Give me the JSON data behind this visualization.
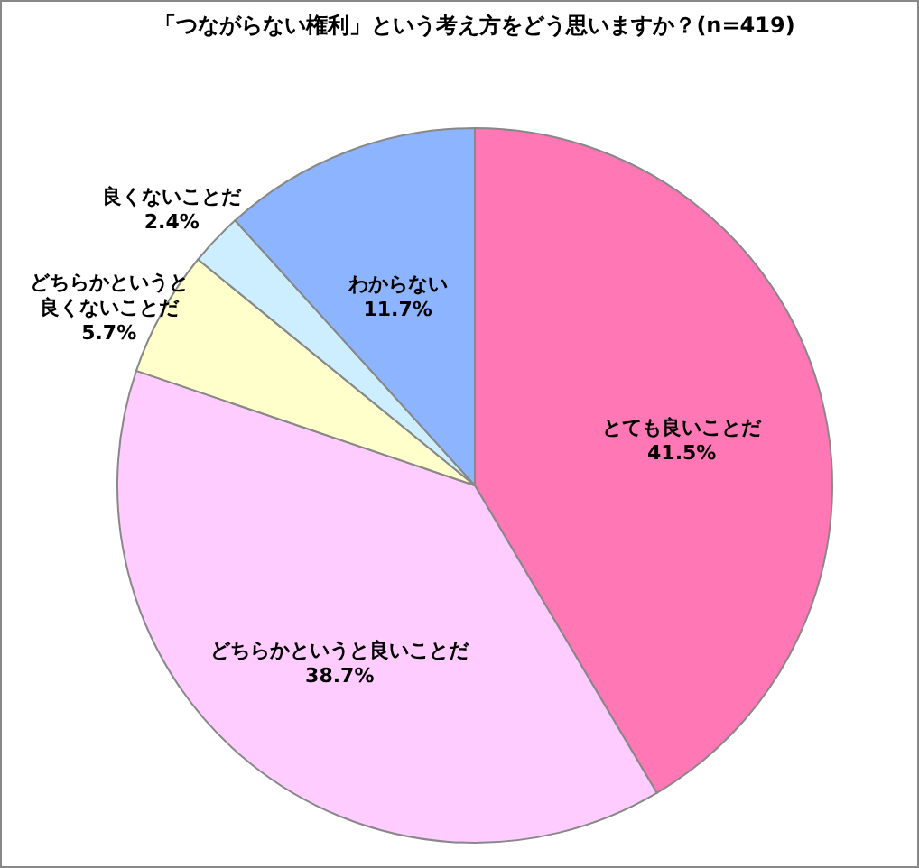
{
  "chart_data": {
    "type": "pie",
    "title": "「つながらない権利」という考え方をどう思いますか？(n=419)",
    "categories": [
      "とても良いことだ",
      "どちらかというと良いことだ",
      "どちらかというと良くないことだ",
      "良くないことだ",
      "わからない"
    ],
    "values": [
      41.5,
      38.7,
      5.7,
      2.4,
      11.7
    ],
    "value_labels": [
      "41.5%",
      "38.7%",
      "5.7%",
      "2.4%",
      "11.7%"
    ],
    "colors": [
      "#ff77b4",
      "#ffccff",
      "#ffffcc",
      "#cceeff",
      "#8db4ff"
    ],
    "legend": false
  }
}
